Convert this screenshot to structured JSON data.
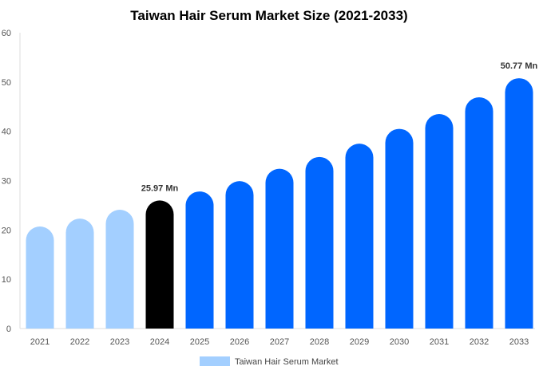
{
  "chart_data": {
    "type": "bar",
    "title": "Taiwan Hair Serum Market Size (2021-2033)",
    "xlabel": "",
    "ylabel": "",
    "ylim": [
      0,
      60
    ],
    "yticks": [
      "0",
      "10",
      "20",
      "30",
      "40",
      "50",
      "60"
    ],
    "grid": false,
    "legend_position": "bottom",
    "categories": [
      "2021",
      "2022",
      "2023",
      "2024",
      "2025",
      "2026",
      "2027",
      "2028",
      "2029",
      "2030",
      "2031",
      "2032",
      "2033"
    ],
    "series": [
      {
        "name": "Taiwan Hair Serum Market",
        "values": [
          20.7,
          22.3,
          24.1,
          25.97,
          27.8,
          29.9,
          32.4,
          34.8,
          37.5,
          40.5,
          43.5,
          46.9,
          50.77
        ],
        "colors": [
          "#a3cfff",
          "#a3cfff",
          "#a3cfff",
          "#000000",
          "#0066ff",
          "#0066ff",
          "#0066ff",
          "#0066ff",
          "#0066ff",
          "#0066ff",
          "#0066ff",
          "#0066ff",
          "#0066ff"
        ]
      }
    ],
    "data_labels": [
      {
        "category": "2024",
        "text": "25.97 Mn"
      },
      {
        "category": "2033",
        "text": "50.77 Mn"
      }
    ],
    "legend_color": "#a3cfff"
  }
}
